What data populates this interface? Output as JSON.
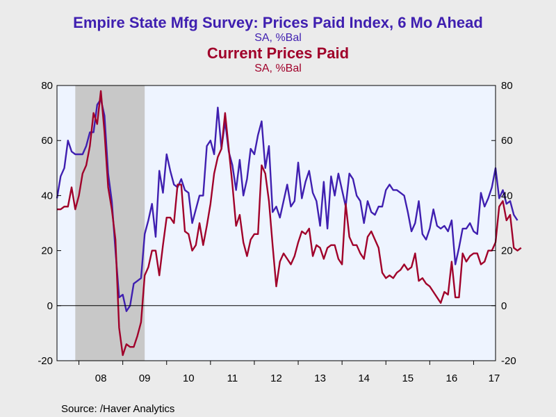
{
  "chart_data": {
    "type": "line",
    "titles": [
      {
        "text": "Empire State Mfg Survey: Prices Paid Index, 6 Mo Ahead",
        "subtitle": "SA, %Bal",
        "color": "#3f1fb0"
      },
      {
        "text": "Current Prices Paid",
        "subtitle": "SA, %Bal",
        "color": "#a0002a"
      }
    ],
    "source": "Source:  /Haver Analytics",
    "x_axis": {
      "start": 2007.5,
      "end": 2017.5,
      "ticks": [
        {
          "label": "08",
          "value": 2008
        },
        {
          "label": "09",
          "value": 2009
        },
        {
          "label": "10",
          "value": 2010
        },
        {
          "label": "11",
          "value": 2011
        },
        {
          "label": "12",
          "value": 2012
        },
        {
          "label": "13",
          "value": 2013
        },
        {
          "label": "14",
          "value": 2014
        },
        {
          "label": "15",
          "value": 2015
        },
        {
          "label": "16",
          "value": 2016
        },
        {
          "label": "17",
          "value": 2017
        }
      ]
    },
    "y_axis": {
      "min": -20,
      "max": 80,
      "ticks": [
        {
          "label": "80",
          "value": 80
        },
        {
          "label": "60",
          "value": 60
        },
        {
          "label": "40",
          "value": 40
        },
        {
          "label": "20",
          "value": 20
        },
        {
          "label": "0",
          "value": 0
        },
        {
          "label": "-20",
          "value": -20
        }
      ],
      "zero_line": true
    },
    "recession_shading": {
      "start": 2007.917,
      "end": 2009.5,
      "color": "#c8c8c8"
    },
    "plot_background": "#eef4ff",
    "series": [
      {
        "color": "#3f1fb0",
        "values": [
          39,
          47,
          50,
          60,
          56,
          55,
          55,
          55,
          58,
          63,
          63,
          73,
          75,
          69,
          48,
          38,
          20,
          3,
          4,
          -2,
          0,
          8,
          9,
          10,
          26,
          31,
          37,
          25,
          49,
          41,
          55,
          49,
          44,
          43,
          46,
          42,
          41,
          30,
          35,
          40,
          40,
          58,
          60,
          55,
          72,
          57,
          67,
          56,
          51,
          42,
          53,
          40,
          46,
          57,
          55,
          62,
          67,
          50,
          58,
          34,
          36,
          32,
          38,
          44,
          36,
          38,
          52,
          39,
          45,
          49,
          41,
          38,
          29,
          45,
          28,
          47,
          40,
          48,
          42,
          36,
          48,
          46,
          40,
          38,
          30,
          38,
          34,
          33,
          36,
          36,
          42,
          44,
          42,
          42,
          41,
          40,
          34,
          27,
          30,
          38,
          26,
          24,
          28,
          35,
          29,
          28,
          29,
          27,
          31,
          15,
          21,
          28,
          28,
          30,
          27,
          26,
          41,
          36,
          39,
          43,
          50,
          39,
          42,
          37,
          38,
          33,
          31
        ],
        "x_start": 2007.5,
        "step": 0.0833333
      },
      {
        "color": "#a0002a",
        "values": [
          35,
          35,
          36,
          36,
          43,
          35,
          40,
          48,
          51,
          58,
          70,
          66,
          78,
          63,
          43,
          35,
          24,
          -8,
          -18,
          -14,
          -15,
          -15,
          -11,
          -6,
          11,
          14,
          20,
          20,
          11,
          22,
          32,
          32,
          30,
          44,
          44,
          27,
          26,
          20,
          22,
          30,
          22,
          29,
          37,
          48,
          54,
          57,
          70,
          57,
          44,
          29,
          33,
          23,
          18,
          24,
          26,
          26,
          51,
          48,
          38,
          22,
          7,
          16,
          19,
          17,
          15,
          18,
          23,
          27,
          26,
          28,
          18,
          22,
          21,
          17,
          21,
          22,
          22,
          17,
          15,
          37,
          25,
          22,
          22,
          19,
          17,
          25,
          27,
          24,
          21,
          12,
          10,
          11,
          10,
          12,
          13,
          15,
          13,
          14,
          19,
          9,
          10,
          8,
          7,
          5,
          3,
          1,
          5,
          4,
          16,
          3,
          3,
          19,
          16,
          18,
          19,
          19,
          15,
          16,
          20,
          20,
          23,
          36,
          38,
          31,
          33,
          21,
          20,
          21
        ],
        "x_start": 2007.5,
        "step": 0.0833333
      }
    ]
  }
}
